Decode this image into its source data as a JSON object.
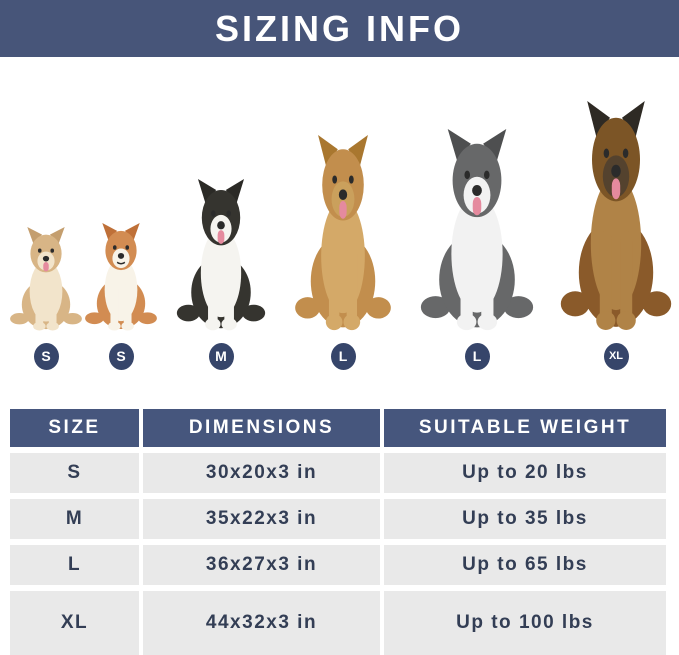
{
  "header": {
    "title": "SIZING INFO"
  },
  "colors": {
    "header_bg": "#475579",
    "table_header_bg": "#46567d",
    "row_bg": "#e9e9e9",
    "badge_bg": "#36456a",
    "cell_text": "#333e55"
  },
  "dogs": [
    {
      "breed": "havanese-puppy",
      "size_label": "S",
      "colors": {
        "body": "#d8b586",
        "ear": "#c49e6e",
        "chest": "#f2e4cb",
        "head": "#d8b586",
        "muzzle": "#f2e4cb"
      },
      "tongue": true
    },
    {
      "breed": "corgi",
      "size_label": "S",
      "colors": {
        "body": "#d28c52",
        "ear": "#bf7038",
        "chest": "#f8f3e8",
        "head": "#d28c52",
        "muzzle": "#f8f3e8"
      },
      "tongue": false
    },
    {
      "breed": "border-collie",
      "size_label": "M",
      "colors": {
        "body": "#35342f",
        "ear": "#2b2a26",
        "chest": "#f5f4f0",
        "head": "#35342f",
        "muzzle": "#f5f4f0"
      },
      "tongue": true
    },
    {
      "breed": "golden-retriever",
      "size_label": "L",
      "colors": {
        "body": "#c28e4d",
        "ear": "#a9772f",
        "chest": "#d4a968",
        "head": "#c28e4d",
        "muzzle": "#caa05c"
      },
      "tongue": true
    },
    {
      "breed": "husky",
      "size_label": "L",
      "colors": {
        "body": "#676869",
        "ear": "#4e4f50",
        "chest": "#f2f2f2",
        "head": "#676869",
        "muzzle": "#f2f2f2"
      },
      "tongue": true
    },
    {
      "breed": "german-shepherd",
      "size_label": "XL",
      "colors": {
        "body": "#8a5a2a",
        "ear": "#2e2a24",
        "chest": "#b08347",
        "head": "#7c5526",
        "muzzle": "#54422e"
      },
      "tongue": true
    }
  ],
  "table": {
    "columns": [
      "SIZE",
      "DIMENSIONS",
      "SUITABLE WEIGHT"
    ],
    "rows": [
      {
        "size": "S",
        "dimensions": "30x20x3 in",
        "weight": "Up to 20 lbs"
      },
      {
        "size": "M",
        "dimensions": "35x22x3 in",
        "weight": "Up to 35 lbs"
      },
      {
        "size": "L",
        "dimensions": "36x27x3 in",
        "weight": "Up to 65 lbs"
      },
      {
        "size": "XL",
        "dimensions": "44x32x3 in",
        "weight": "Up to 100 lbs"
      }
    ]
  }
}
